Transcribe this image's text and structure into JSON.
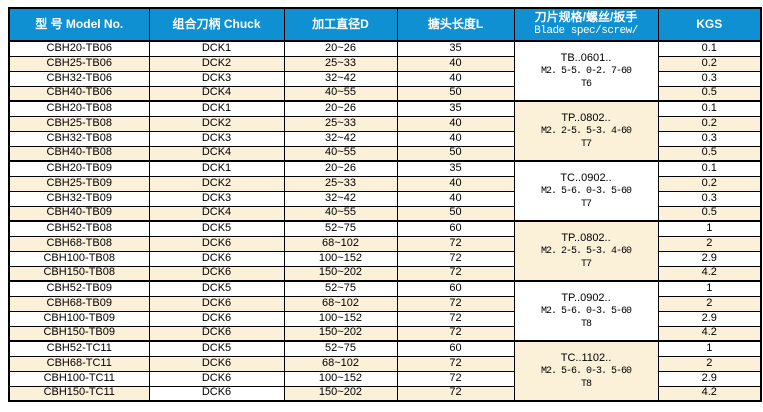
{
  "colors": {
    "header_bg": "#0e90d2",
    "header_text": "#ffffff",
    "row_alt_bg": "#fbf0d8",
    "row_bg": "#ffffff",
    "grid": "#000000"
  },
  "table": {
    "columns": [
      {
        "key": "model",
        "label": "型 号 Model No."
      },
      {
        "key": "chuck",
        "label": "组合刀柄 Chuck"
      },
      {
        "key": "diameter",
        "label": "加工直径D"
      },
      {
        "key": "length",
        "label": "搪头长度L"
      },
      {
        "key": "spec",
        "label": "刀片规格/螺丝/扳手",
        "sub": "Blade spec/screw/"
      },
      {
        "key": "kgs",
        "label": "KGS"
      }
    ],
    "groups": [
      {
        "blade_spec": {
          "line1": "TB..0601..",
          "line2": "M2. 5-5. 0-2. 7-60",
          "line3": "T6"
        },
        "rows": [
          {
            "model": "CBH20-TB06",
            "chuck": "DCK1",
            "diameter": "20~26",
            "length": "35",
            "kgs": "0.1"
          },
          {
            "model": "CBH25-TB06",
            "chuck": "DCK2",
            "diameter": "25~33",
            "length": "40",
            "kgs": "0.2"
          },
          {
            "model": "CBH32-TB06",
            "chuck": "DCK3",
            "diameter": "32~42",
            "length": "40",
            "kgs": "0.3"
          },
          {
            "model": "CBH40-TB06",
            "chuck": "DCK4",
            "diameter": "40~55",
            "length": "50",
            "kgs": "0.5"
          }
        ]
      },
      {
        "blade_spec": {
          "line1": "TP..0802..",
          "line2": "M2. 2-5. 5-3. 4-60",
          "line3": "T7"
        },
        "rows": [
          {
            "model": "CBH20-TB08",
            "chuck": "DCK1",
            "diameter": "20~26",
            "length": "35",
            "kgs": "0.1"
          },
          {
            "model": "CBH25-TB08",
            "chuck": "DCK2",
            "diameter": "25~33",
            "length": "40",
            "kgs": "0.2"
          },
          {
            "model": "CBH32-TB08",
            "chuck": "DCK3",
            "diameter": "32~42",
            "length": "40",
            "kgs": "0.3"
          },
          {
            "model": "CBH40-TB08",
            "chuck": "DCK4",
            "diameter": "40~55",
            "length": "50",
            "kgs": "0.5"
          }
        ]
      },
      {
        "blade_spec": {
          "line1": "TC..0902..",
          "line2": "M2. 5-6. 0-3. 5-60",
          "line3": "T7"
        },
        "rows": [
          {
            "model": "CBH20-TB09",
            "chuck": "DCK1",
            "diameter": "20~26",
            "length": "35",
            "kgs": "0.1"
          },
          {
            "model": "CBH25-TB09",
            "chuck": "DCK2",
            "diameter": "25~33",
            "length": "40",
            "kgs": "0.2"
          },
          {
            "model": "CBH32-TB09",
            "chuck": "DCK3",
            "diameter": "32~42",
            "length": "40",
            "kgs": "0.3"
          },
          {
            "model": "CBH40-TB09",
            "chuck": "DCK4",
            "diameter": "40~55",
            "length": "50",
            "kgs": "0.5"
          }
        ]
      },
      {
        "blade_spec": {
          "line1": "TP..0802..",
          "line2": "M2. 2-5. 5-3. 4-60",
          "line3": "T7"
        },
        "rows": [
          {
            "model": "CBH52-TB08",
            "chuck": "DCK5",
            "diameter": "52~75",
            "length": "60",
            "kgs": "1"
          },
          {
            "model": "CBH68-TB08",
            "chuck": "DCK6",
            "diameter": "68~102",
            "length": "72",
            "kgs": "2"
          },
          {
            "model": "CBH100-TB08",
            "chuck": "DCK6",
            "diameter": "100~152",
            "length": "72",
            "kgs": "2.9"
          },
          {
            "model": "CBH150-TB08",
            "chuck": "DCK6",
            "diameter": "150~202",
            "length": "72",
            "kgs": "4.2"
          }
        ]
      },
      {
        "blade_spec": {
          "line1": "TP..0902..",
          "line2": "M2. 5-6. 0-3. 5-60",
          "line3": "T8"
        },
        "rows": [
          {
            "model": "CBH52-TB09",
            "chuck": "DCK5",
            "diameter": "52~75",
            "length": "60",
            "kgs": "1"
          },
          {
            "model": "CBH68-TB09",
            "chuck": "DCK6",
            "diameter": "68~102",
            "length": "72",
            "kgs": "2"
          },
          {
            "model": "CBH100-TB09",
            "chuck": "DCK6",
            "diameter": "100~152",
            "length": "72",
            "kgs": "2.9"
          },
          {
            "model": "CBH150-TB09",
            "chuck": "DCK6",
            "diameter": "150~202",
            "length": "72",
            "kgs": "4.2"
          }
        ]
      },
      {
        "blade_spec": {
          "line1": "TC..1102..",
          "line2": "M2. 5-6. 0-3. 5-60",
          "line3": "T8"
        },
        "rows": [
          {
            "model": "CBH52-TC11",
            "chuck": "DCK5",
            "diameter": "52~75",
            "length": "60",
            "kgs": "1"
          },
          {
            "model": "CBH68-TC11",
            "chuck": "DCK6",
            "diameter": "68~102",
            "length": "72",
            "kgs": "2"
          },
          {
            "model": "CBH100-TC11",
            "chuck": "DCK6",
            "diameter": "100~152",
            "length": "72",
            "kgs": "2.9"
          },
          {
            "model": "CBH150-TC11",
            "chuck": "DCK6",
            "diameter": "150~202",
            "length": "72",
            "kgs": "4.2"
          }
        ]
      }
    ]
  }
}
